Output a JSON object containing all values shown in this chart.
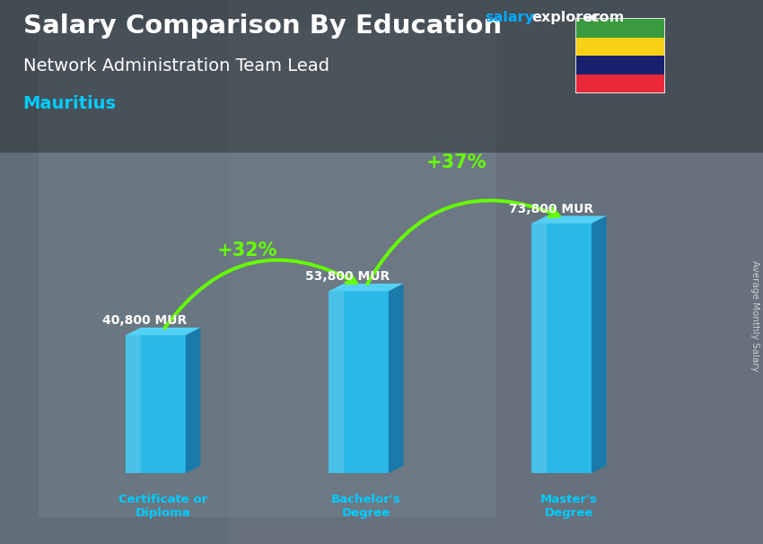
{
  "title_line1": "Salary Comparison By Education",
  "subtitle": "Network Administration Team Lead",
  "country": "Mauritius",
  "ylabel": "Average Monthly Salary",
  "categories": [
    "Certificate or\nDiploma",
    "Bachelor's\nDegree",
    "Master's\nDegree"
  ],
  "values": [
    40800,
    53800,
    73800
  ],
  "value_labels": [
    "40,800 MUR",
    "53,800 MUR",
    "73,800 MUR"
  ],
  "pct_labels": [
    "+32%",
    "+37%"
  ],
  "bar_front_color": "#29b8e8",
  "bar_side_color": "#1a7aaa",
  "bar_top_color": "#55d0f5",
  "bg_color": "#7a8a98",
  "title_color": "#ffffff",
  "subtitle_color": "#ffffff",
  "country_color": "#00ccff",
  "value_label_color": "#ffffff",
  "pct_color": "#66ff00",
  "xlabel_color": "#00ccff",
  "arrow_color": "#66ff00",
  "watermark_salary_color": "#00aaff",
  "watermark_explorer_color": "#ffffff",
  "watermark_com_color": "#ffffff",
  "ylim": [
    0,
    90000
  ],
  "bar_width": 0.28,
  "bar_positions": [
    0.55,
    1.5,
    2.45
  ],
  "flag_colors": [
    "#ea2839",
    "#1a206e",
    "#f7d116",
    "#3a9a40"
  ],
  "side_label_color": "#cccccc"
}
